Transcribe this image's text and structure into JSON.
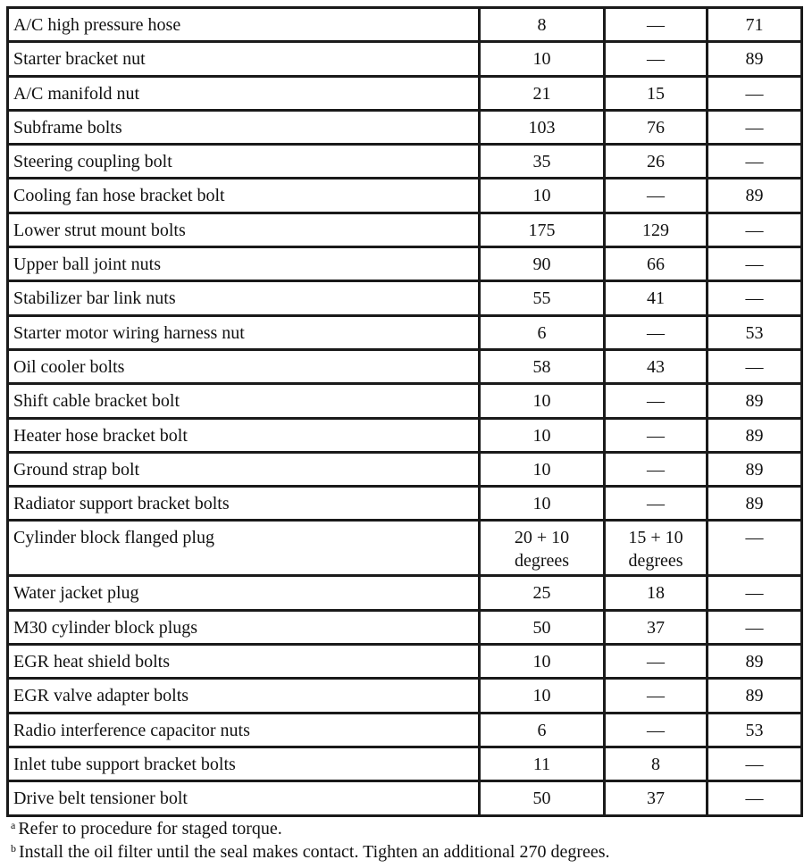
{
  "rows": [
    {
      "name": "A/C high pressure hose",
      "nm": "8",
      "lbft": "—",
      "lbin": "71"
    },
    {
      "name": "Starter bracket nut",
      "nm": "10",
      "lbft": "—",
      "lbin": "89"
    },
    {
      "name": "A/C manifold nut",
      "nm": "21",
      "lbft": "15",
      "lbin": "—"
    },
    {
      "name": "Subframe bolts",
      "nm": "103",
      "lbft": "76",
      "lbin": "—"
    },
    {
      "name": "Steering coupling bolt",
      "nm": "35",
      "lbft": "26",
      "lbin": "—"
    },
    {
      "name": "Cooling fan hose bracket bolt",
      "nm": "10",
      "lbft": "—",
      "lbin": "89"
    },
    {
      "name": "Lower strut mount bolts",
      "nm": "175",
      "lbft": "129",
      "lbin": "—"
    },
    {
      "name": "Upper ball joint nuts",
      "nm": "90",
      "lbft": "66",
      "lbin": "—"
    },
    {
      "name": "Stabilizer bar link nuts",
      "nm": "55",
      "lbft": "41",
      "lbin": "—"
    },
    {
      "name": "Starter motor wiring harness nut",
      "nm": "6",
      "lbft": "—",
      "lbin": "53"
    },
    {
      "name": "Oil cooler bolts",
      "nm": "58",
      "lbft": "43",
      "lbin": "—"
    },
    {
      "name": "Shift cable bracket bolt",
      "nm": "10",
      "lbft": "—",
      "lbin": "89"
    },
    {
      "name": "Heater hose bracket bolt",
      "nm": "10",
      "lbft": "—",
      "lbin": "89"
    },
    {
      "name": "Ground strap bolt",
      "nm": "10",
      "lbft": "—",
      "lbin": "89"
    },
    {
      "name": "Radiator support bracket bolts",
      "nm": "10",
      "lbft": "—",
      "lbin": "89"
    },
    {
      "name": "Cylinder block flanged plug",
      "nm": "20 + 10 degrees",
      "lbft": "15 + 10 degrees",
      "lbin": "—"
    },
    {
      "name": "Water jacket plug",
      "nm": "25",
      "lbft": "18",
      "lbin": "—"
    },
    {
      "name": "M30 cylinder block plugs",
      "nm": "50",
      "lbft": "37",
      "lbin": "—"
    },
    {
      "name": "EGR heat shield bolts",
      "nm": "10",
      "lbft": "—",
      "lbin": "89"
    },
    {
      "name": "EGR valve adapter bolts",
      "nm": "10",
      "lbft": "—",
      "lbin": "89"
    },
    {
      "name": "Radio interference capacitor nuts",
      "nm": "6",
      "lbft": "—",
      "lbin": "53"
    },
    {
      "name": "Inlet tube support bracket bolts",
      "nm": "11",
      "lbft": "8",
      "lbin": "—"
    },
    {
      "name": "Drive belt tensioner bolt",
      "nm": "50",
      "lbft": "37",
      "lbin": "—"
    }
  ],
  "footnotes": [
    {
      "mark": "a",
      "text": "Refer to procedure for staged torque."
    },
    {
      "mark": "b",
      "text": "Install the oil filter until the seal makes contact. Tighten an additional 270 degrees."
    }
  ]
}
